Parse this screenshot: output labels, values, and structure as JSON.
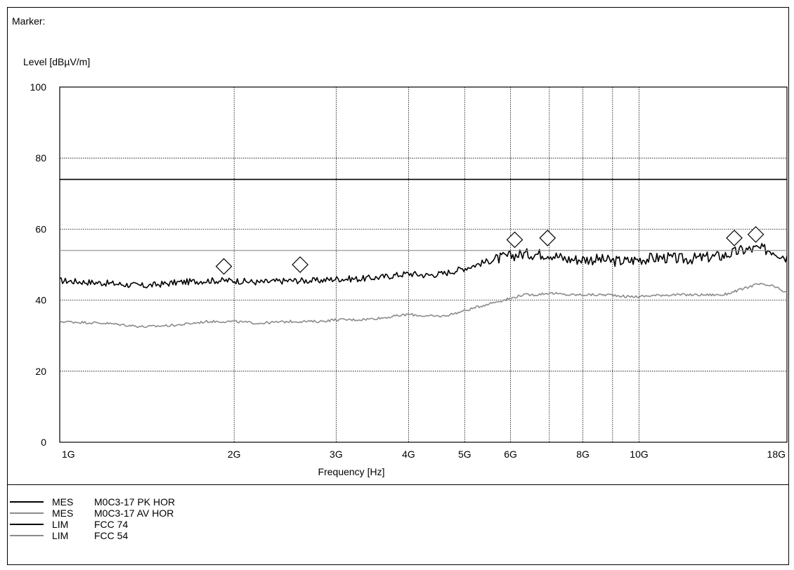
{
  "header": {
    "marker_label": "Marker:"
  },
  "chart_data": {
    "type": "line",
    "xlabel": "Frequency [Hz]",
    "ylabel": "Level [dBµV/m]",
    "x_scale": "log",
    "xlim": [
      1000000000.0,
      18000000000.0
    ],
    "ylim": [
      0,
      100
    ],
    "grid": true,
    "y_ticks": [
      0,
      20,
      40,
      60,
      80,
      100
    ],
    "x_ticks": [
      {
        "value": 1000000000.0,
        "label": "1G"
      },
      {
        "value": 2000000000.0,
        "label": "2G"
      },
      {
        "value": 3000000000.0,
        "label": "3G"
      },
      {
        "value": 4000000000.0,
        "label": "4G"
      },
      {
        "value": 5000000000.0,
        "label": "5G"
      },
      {
        "value": 6000000000.0,
        "label": "6G"
      },
      {
        "value": 8000000000.0,
        "label": "8G"
      },
      {
        "value": 10000000000.0,
        "label": "10G"
      },
      {
        "value": 18000000000.0,
        "label": "18G"
      }
    ],
    "x_grid_only": [
      7000000000.0,
      9000000000.0
    ],
    "series": [
      {
        "name": "M0C3-17 PK HOR",
        "kind": "MES",
        "color": "#000000",
        "width": 1.6,
        "x": [
          1000000000.0,
          1200000000.0,
          1400000000.0,
          1600000000.0,
          1800000000.0,
          2000000000.0,
          2200000000.0,
          2500000000.0,
          2800000000.0,
          3000000000.0,
          3300000000.0,
          3600000000.0,
          4000000000.0,
          4300000000.0,
          4600000000.0,
          5000000000.0,
          5500000000.0,
          6000000000.0,
          6300000000.0,
          6600000000.0,
          7000000000.0,
          7500000000.0,
          8000000000.0,
          8500000000.0,
          9000000000.0,
          9500000000.0,
          10000000000.0,
          11000000000.0,
          12000000000.0,
          13000000000.0,
          14000000000.0,
          15000000000.0,
          16000000000.0,
          17000000000.0,
          18000000000.0
        ],
        "y": [
          45.5,
          44.8,
          44,
          45,
          45.5,
          45.5,
          45,
          45.5,
          45.5,
          46,
          46,
          46.5,
          47.5,
          47,
          47.5,
          49,
          51,
          52.5,
          53,
          53,
          53,
          51.5,
          51.5,
          51.5,
          51,
          51,
          51.5,
          52,
          51.5,
          52,
          52.5,
          54,
          54.5,
          54,
          52
        ]
      },
      {
        "name": "M0C3-17 AV HOR",
        "kind": "MES",
        "color": "#8c8c8c",
        "width": 1.6,
        "x": [
          1000000000.0,
          1200000000.0,
          1400000000.0,
          1600000000.0,
          1800000000.0,
          2000000000.0,
          2200000000.0,
          2500000000.0,
          2800000000.0,
          3000000000.0,
          3300000000.0,
          3600000000.0,
          4000000000.0,
          4300000000.0,
          4600000000.0,
          5000000000.0,
          5500000000.0,
          6000000000.0,
          6300000000.0,
          6600000000.0,
          7000000000.0,
          7500000000.0,
          8000000000.0,
          8500000000.0,
          9000000000.0,
          9500000000.0,
          10000000000.0,
          11000000000.0,
          12000000000.0,
          13000000000.0,
          14000000000.0,
          15000000000.0,
          16000000000.0,
          17000000000.0,
          18000000000.0
        ],
        "y": [
          34,
          33.5,
          32.5,
          33,
          34,
          34,
          33.5,
          34,
          34,
          34.5,
          34.5,
          35,
          36,
          35.5,
          35.5,
          37,
          39,
          40.5,
          41.5,
          41.5,
          42,
          41.5,
          41.5,
          41.5,
          41.5,
          41,
          41,
          41.5,
          41.5,
          41.5,
          41.5,
          43,
          44.5,
          44,
          42
        ]
      },
      {
        "name": "FCC 74",
        "kind": "LIM",
        "color": "#000000",
        "width": 1.6,
        "x": [
          1000000000.0,
          18000000000.0
        ],
        "y": [
          74,
          74
        ]
      },
      {
        "name": "FCC 54",
        "kind": "LIM",
        "color": "#8c8c8c",
        "width": 1.2,
        "x": [
          1000000000.0,
          18000000000.0
        ],
        "y": [
          54,
          54
        ]
      }
    ],
    "markers": [
      {
        "x": 1920000000.0,
        "y": 49.5
      },
      {
        "x": 2600000000.0,
        "y": 50
      },
      {
        "x": 6100000000.0,
        "y": 57
      },
      {
        "x": 6950000000.0,
        "y": 57.5
      },
      {
        "x": 14600000000.0,
        "y": 57.5
      },
      {
        "x": 15900000000.0,
        "y": 58.5
      }
    ],
    "legend_placement": "bottom-left"
  }
}
